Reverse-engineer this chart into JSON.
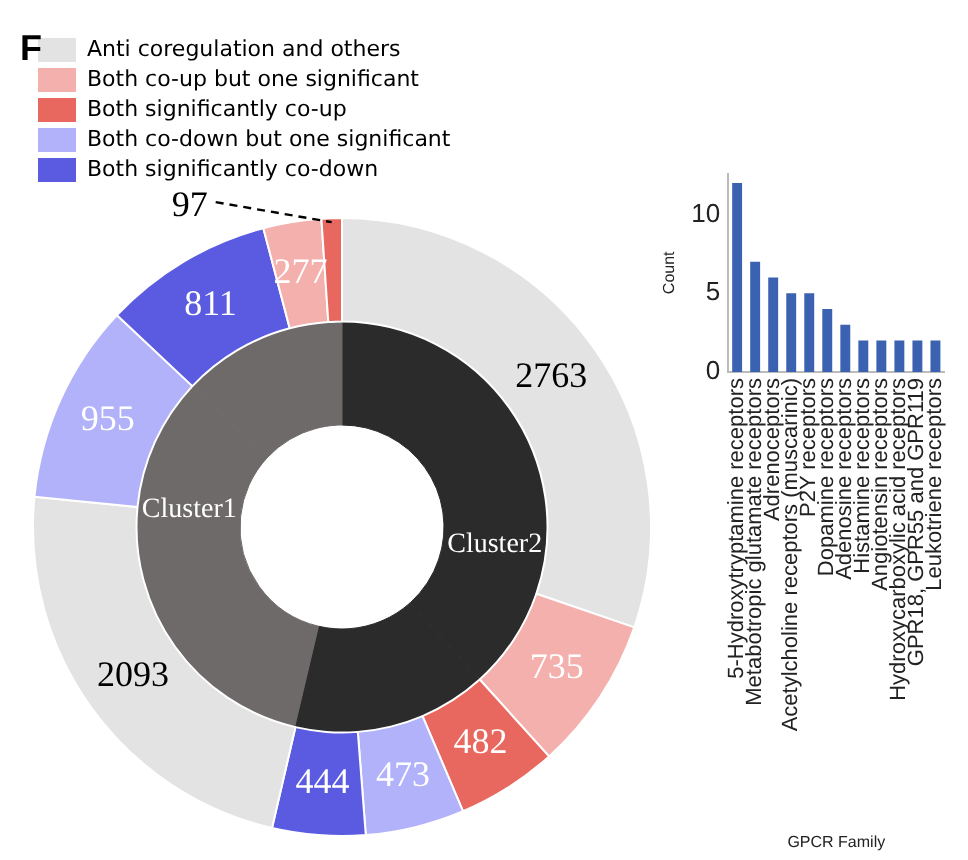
{
  "chart_data": [
    {
      "type": "donut",
      "annotations": [
        "F"
      ],
      "legend": "top",
      "categories": [
        "Anti coregulation and others",
        "Both co-up but one significant",
        "Both significantly co-up",
        "Both co-down but one significant",
        "Both significantly co-down",
        null,
        null,
        null,
        null,
        null
      ],
      "series": [
        {
          "colors": [
            "#e3e3e3",
            "#f4b0ac",
            "#e8685f",
            "#b2b2fb",
            "#5b5be2",
            "#e3e3e3",
            "#b2b2fb",
            "#5b5be2",
            "#f4b0ac",
            "#e8685f"
          ],
          "values": [
            2763,
            735,
            482,
            473,
            444,
            2093,
            955,
            811,
            277,
            97
          ],
          "value_labels": [
            "2763",
            "735",
            "482",
            "473",
            "444",
            "2093",
            "955",
            "811",
            "277",
            "97"
          ]
        },
        {
          "colors": [
            "#2b2b2b",
            "#2b2b2b",
            "#2b2b2b",
            "#2b2b2b",
            "#2b2b2b",
            "#6e6a69",
            "#6e6a69",
            "#6e6a69",
            "#6e6a69",
            "#6e6a69"
          ],
          "values": [
            30.2,
            8.1,
            5.3,
            5.2,
            4.9,
            22.8,
            10.5,
            8.9,
            3.0,
            1.1
          ],
          "value_labels": [
            "Cluster2",
            null,
            null,
            null,
            null,
            "Cluster1",
            null,
            null,
            null,
            null
          ]
        }
      ]
    },
    {
      "type": "bar",
      "categories": [
        "5-Hydroxytryptamine receptors",
        "Metabotropic glutamate receptors",
        "Adrenoceptors",
        "Acetylcholine receptors (muscarinic)",
        "P2Y receptors",
        "Dopamine receptors",
        "Adenosine receptors",
        "Histamine receptors",
        "Angiotensin receptors",
        "Hydroxycarboxylic acid receptors",
        "GPR18, GPR55 and GPR119",
        "Leukotriene receptors"
      ],
      "values": [
        12,
        7,
        6,
        5,
        5,
        4,
        3,
        2,
        2,
        2,
        2,
        2
      ],
      "color": "#3a62b0",
      "ylim": [
        0,
        12.6
      ],
      "yticks": [
        0,
        5,
        10
      ],
      "ylabel": "Count",
      "xlabel": "GPCR Family",
      "grid": false,
      "legend": false
    }
  ]
}
